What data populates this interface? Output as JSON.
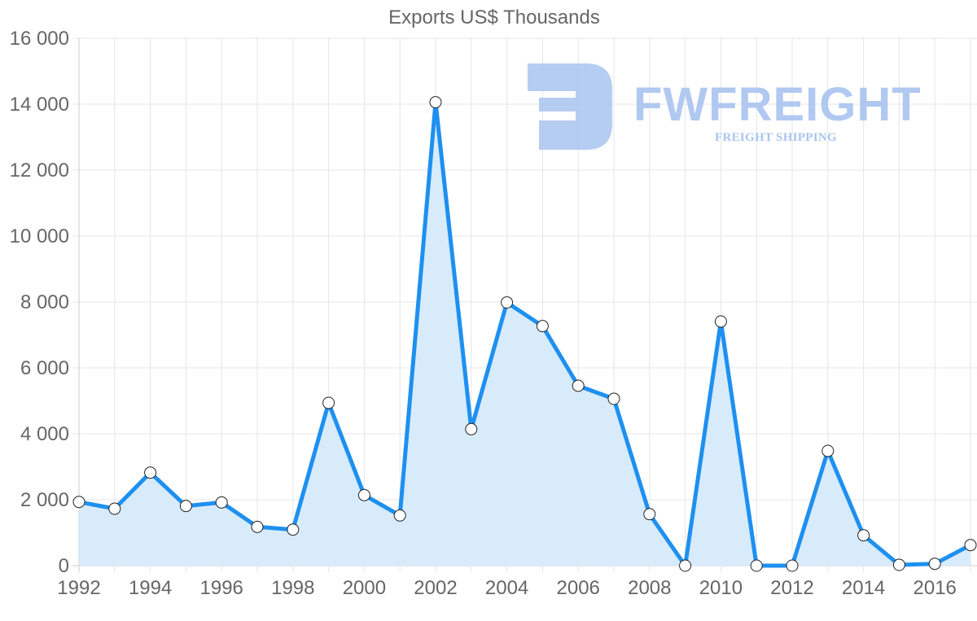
{
  "chart_data": {
    "type": "line",
    "title": "Exports US$ Thousands",
    "xlabel": "",
    "ylabel": "",
    "x": [
      1992,
      1993,
      1994,
      1995,
      1996,
      1997,
      1998,
      1999,
      2000,
      2001,
      2002,
      2003,
      2004,
      2005,
      2006,
      2007,
      2008,
      2009,
      2010,
      2011,
      2012,
      2013,
      2014,
      2015,
      2016,
      2017
    ],
    "series": [
      {
        "name": "Exports US$ Thousands",
        "values": [
          1933,
          1728,
          2822,
          1810,
          1918,
          1177,
          1094,
          4938,
          2140,
          1523,
          14060,
          4141,
          7985,
          7267,
          5458,
          5062,
          1563,
          0,
          7407,
          0,
          0,
          3481,
          921,
          25,
          57,
          625
        ],
        "color": "#1e90ef",
        "fill": "#d8ebfb"
      }
    ],
    "xticks": [
      "1992",
      "1994",
      "1996",
      "1998",
      "2000",
      "2002",
      "2004",
      "2006",
      "2008",
      "2010",
      "2012",
      "2014",
      "2016"
    ],
    "yticks": [
      "0",
      "2 000",
      "4 000",
      "6 000",
      "8 000",
      "10 000",
      "12 000",
      "14 000",
      "16 000"
    ],
    "ylim": [
      0,
      16000
    ],
    "xlim": [
      1992,
      2017
    ],
    "grid": true,
    "legend": "none"
  },
  "watermark": {
    "brand": "FWFREIGHT",
    "tagline": "FREIGHT SHIPPING"
  }
}
